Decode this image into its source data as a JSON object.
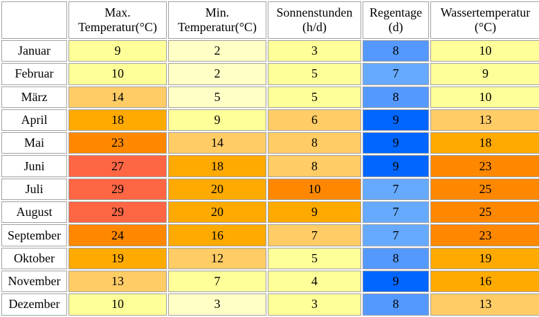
{
  "table": {
    "columns": [
      {
        "line1": "Max.",
        "line2": "Temperatur(°C)"
      },
      {
        "line1": "Min.",
        "line2": "Temperatur(°C)"
      },
      {
        "line1": "Sonnenstunden",
        "line2": "(h/d)"
      },
      {
        "line1": "Regentage",
        "line2": "(d)"
      },
      {
        "line1": "Wassertemperatur",
        "line2": "(°C)"
      }
    ],
    "rows": [
      {
        "month": "Januar",
        "cells": [
          "9",
          "2",
          "3",
          "8",
          "10"
        ],
        "colors": [
          "#ffff99",
          "#ffffc6",
          "#ffff99",
          "#5599ff",
          "#ffff99"
        ]
      },
      {
        "month": "Februar",
        "cells": [
          "10",
          "2",
          "5",
          "7",
          "9"
        ],
        "colors": [
          "#ffff99",
          "#ffffc6",
          "#ffff99",
          "#66aaff",
          "#ffff99"
        ]
      },
      {
        "month": "März",
        "cells": [
          "14",
          "5",
          "5",
          "8",
          "10"
        ],
        "colors": [
          "#ffcc66",
          "#ffffc6",
          "#ffff99",
          "#5599ff",
          "#ffff99"
        ]
      },
      {
        "month": "April",
        "cells": [
          "18",
          "9",
          "6",
          "9",
          "13"
        ],
        "colors": [
          "#ffaa00",
          "#ffff99",
          "#ffcc66",
          "#0066ff",
          "#ffcc66"
        ]
      },
      {
        "month": "Mai",
        "cells": [
          "23",
          "14",
          "8",
          "9",
          "18"
        ],
        "colors": [
          "#ff8800",
          "#ffcc66",
          "#ffcc66",
          "#0066ff",
          "#ffaa00"
        ]
      },
      {
        "month": "Juni",
        "cells": [
          "27",
          "18",
          "8",
          "9",
          "23"
        ],
        "colors": [
          "#ff6644",
          "#ffaa00",
          "#ffcc66",
          "#0066ff",
          "#ff8800"
        ]
      },
      {
        "month": "Juli",
        "cells": [
          "29",
          "20",
          "10",
          "7",
          "25"
        ],
        "colors": [
          "#ff6644",
          "#ffaa00",
          "#ff8800",
          "#66aaff",
          "#ff8800"
        ]
      },
      {
        "month": "August",
        "cells": [
          "29",
          "20",
          "9",
          "7",
          "25"
        ],
        "colors": [
          "#ff6644",
          "#ffaa00",
          "#ffaa00",
          "#66aaff",
          "#ff8800"
        ]
      },
      {
        "month": "September",
        "cells": [
          "24",
          "16",
          "7",
          "7",
          "23"
        ],
        "colors": [
          "#ff8800",
          "#ffaa00",
          "#ffcc66",
          "#66aaff",
          "#ff8800"
        ]
      },
      {
        "month": "Oktober",
        "cells": [
          "19",
          "12",
          "5",
          "8",
          "19"
        ],
        "colors": [
          "#ffaa00",
          "#ffcc66",
          "#ffff99",
          "#5599ff",
          "#ffaa00"
        ]
      },
      {
        "month": "November",
        "cells": [
          "13",
          "7",
          "4",
          "9",
          "16"
        ],
        "colors": [
          "#ffcc66",
          "#ffff99",
          "#ffff99",
          "#0066ff",
          "#ffaa00"
        ]
      },
      {
        "month": "Dezember",
        "cells": [
          "10",
          "3",
          "3",
          "8",
          "13"
        ],
        "colors": [
          "#ffff99",
          "#ffffc6",
          "#ffff99",
          "#5599ff",
          "#ffcc66"
        ]
      }
    ]
  }
}
